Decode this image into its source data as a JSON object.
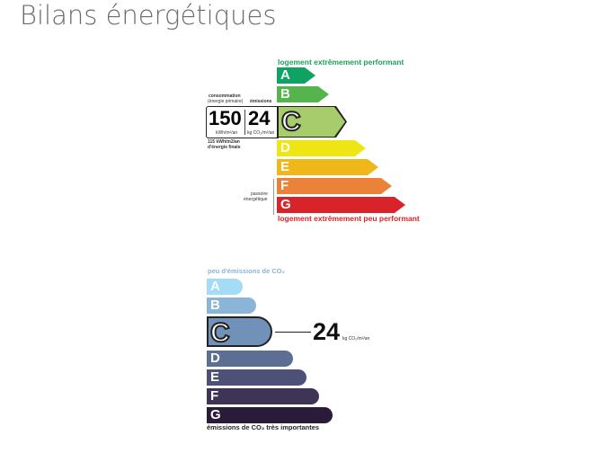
{
  "title": "Bilans énergétiques",
  "dpe": {
    "top_label": "logement extrêmement performant",
    "bottom_label": "logement extrêmement peu performant",
    "current_class": "C",
    "classes": [
      {
        "letter": "A",
        "color": "#0ea263"
      },
      {
        "letter": "B",
        "color": "#55b44b"
      },
      {
        "letter": "C",
        "color": "#a6cc6c"
      },
      {
        "letter": "D",
        "color": "#f0e514"
      },
      {
        "letter": "E",
        "color": "#f0b71a"
      },
      {
        "letter": "F",
        "color": "#eb823a"
      },
      {
        "letter": "G",
        "color": "#d8232a"
      }
    ],
    "consumption_label": "consommation",
    "consumption_sub": "(énergie primaire)",
    "consumption_value": "150",
    "consumption_unit": "kWh/m²/an",
    "emissions_label": "émissions",
    "emissions_value": "24",
    "emissions_unit": "kg CO₂/m²/an",
    "final_energy": "115 kWh/m2/an",
    "final_energy_label": "d'énergie finale",
    "passoire": "passoire",
    "passoire2": "énergétique"
  },
  "ges": {
    "top_label": "peu d'émissions de CO₂",
    "bottom_label": "émissions de CO₂ très importantes",
    "current_class": "C",
    "value": "24",
    "unit": "kg CO₂/m²/an",
    "classes": [
      {
        "letter": "A",
        "color": "#a4dbf7"
      },
      {
        "letter": "B",
        "color": "#8ab4d8"
      },
      {
        "letter": "C",
        "color": "#7192b8"
      },
      {
        "letter": "D",
        "color": "#5d6e95"
      },
      {
        "letter": "E",
        "color": "#4d5178"
      },
      {
        "letter": "F",
        "color": "#3d3456"
      },
      {
        "letter": "G",
        "color": "#2a1b3a"
      }
    ]
  }
}
